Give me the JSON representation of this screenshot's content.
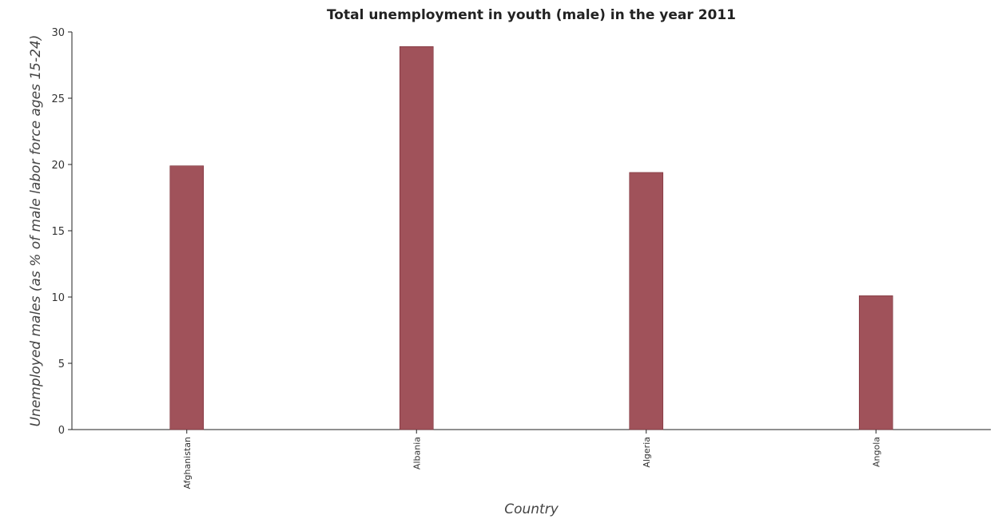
{
  "chart_data": {
    "type": "bar",
    "title": "Total unemployment in youth (male) in the year 2011",
    "xlabel": "Country",
    "ylabel": "Unemployed males (as % of male labor force ages 15-24)",
    "categories": [
      "Afghanistan",
      "Albania",
      "Algeria",
      "Angola"
    ],
    "values": [
      19.9,
      28.9,
      19.4,
      10.1
    ],
    "ylim": [
      0,
      30
    ],
    "yticks": [
      0,
      5,
      10,
      15,
      20,
      25,
      30
    ],
    "grid": false,
    "legend": "none",
    "colors": {
      "bar_fill": "#a0525a",
      "bar_stroke": "#7a3038",
      "axis": "#222222",
      "background": "#ffffff"
    }
  }
}
